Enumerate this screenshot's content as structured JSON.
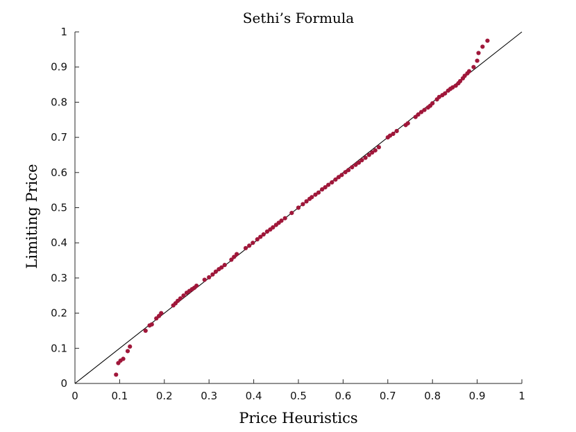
{
  "chart_data": {
    "type": "scatter",
    "title": "Sethi’s Formula",
    "xlabel": "Price Heuristics",
    "ylabel": "Limiting Price",
    "xlim": [
      0,
      1
    ],
    "ylim": [
      0,
      1
    ],
    "xticks": [
      "0",
      "0.1",
      "0.2",
      "0.3",
      "0.4",
      "0.5",
      "0.6",
      "0.7",
      "0.8",
      "0.9",
      "1"
    ],
    "yticks": [
      "0",
      "0.1",
      "0.2",
      "0.3",
      "0.4",
      "0.5",
      "0.6",
      "0.7",
      "0.8",
      "0.9",
      "1"
    ],
    "grid": false,
    "reference_line": {
      "x": [
        0,
        1
      ],
      "y": [
        0,
        1
      ],
      "color": "#000000"
    },
    "marker_color": "#a0173a",
    "series": [
      {
        "x": [
          0.092,
          0.097,
          0.102,
          0.108,
          0.118,
          0.123,
          0.158,
          0.167,
          0.172,
          0.182,
          0.188,
          0.193,
          0.22,
          0.225,
          0.23,
          0.236,
          0.243,
          0.25,
          0.256,
          0.262,
          0.267,
          0.272,
          0.29,
          0.3,
          0.308,
          0.315,
          0.322,
          0.328,
          0.335,
          0.35,
          0.356,
          0.362,
          0.382,
          0.39,
          0.398,
          0.408,
          0.415,
          0.422,
          0.43,
          0.437,
          0.443,
          0.45,
          0.456,
          0.462,
          0.47,
          0.485,
          0.5,
          0.51,
          0.518,
          0.525,
          0.53,
          0.538,
          0.545,
          0.553,
          0.56,
          0.567,
          0.575,
          0.583,
          0.59,
          0.597,
          0.605,
          0.612,
          0.62,
          0.628,
          0.635,
          0.642,
          0.65,
          0.658,
          0.665,
          0.672,
          0.68,
          0.7,
          0.705,
          0.712,
          0.72,
          0.74,
          0.745,
          0.762,
          0.768,
          0.775,
          0.782,
          0.79,
          0.795,
          0.8,
          0.81,
          0.815,
          0.822,
          0.828,
          0.835,
          0.84,
          0.845,
          0.852,
          0.858,
          0.862,
          0.868,
          0.872,
          0.878,
          0.882,
          0.892,
          0.9,
          0.903,
          0.912,
          0.923
        ],
        "y": [
          0.025,
          0.058,
          0.065,
          0.07,
          0.092,
          0.105,
          0.15,
          0.165,
          0.168,
          0.185,
          0.192,
          0.2,
          0.222,
          0.228,
          0.235,
          0.242,
          0.25,
          0.258,
          0.263,
          0.268,
          0.272,
          0.278,
          0.295,
          0.302,
          0.31,
          0.318,
          0.325,
          0.33,
          0.337,
          0.352,
          0.36,
          0.368,
          0.385,
          0.392,
          0.4,
          0.41,
          0.417,
          0.424,
          0.432,
          0.438,
          0.444,
          0.451,
          0.457,
          0.463,
          0.47,
          0.485,
          0.5,
          0.51,
          0.518,
          0.525,
          0.53,
          0.537,
          0.543,
          0.552,
          0.558,
          0.565,
          0.572,
          0.58,
          0.587,
          0.593,
          0.601,
          0.607,
          0.615,
          0.622,
          0.628,
          0.635,
          0.642,
          0.65,
          0.657,
          0.663,
          0.672,
          0.7,
          0.705,
          0.71,
          0.718,
          0.735,
          0.74,
          0.758,
          0.765,
          0.772,
          0.778,
          0.785,
          0.79,
          0.797,
          0.808,
          0.815,
          0.82,
          0.825,
          0.833,
          0.838,
          0.842,
          0.847,
          0.854,
          0.86,
          0.868,
          0.875,
          0.882,
          0.888,
          0.9,
          0.918,
          0.94,
          0.958,
          0.975
        ]
      }
    ]
  }
}
